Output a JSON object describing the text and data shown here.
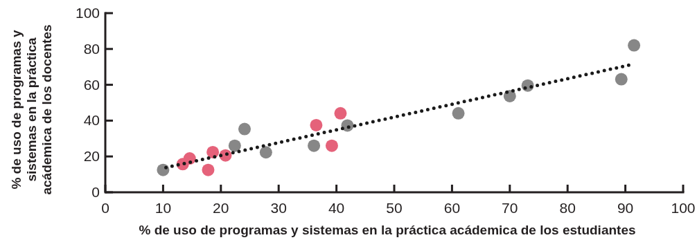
{
  "chart_data": {
    "type": "scatter",
    "xlabel": "% de uso de programas y sistemas en la práctica acádemica de los estudiantes",
    "ylabel": "% de uso de programas y\nsistemas en la práctica\nacádemica de los docentes",
    "xlim": [
      0,
      100
    ],
    "ylim": [
      0,
      100
    ],
    "xticks": [
      0,
      10,
      20,
      30,
      40,
      50,
      60,
      70,
      80,
      90,
      100
    ],
    "yticks": [
      0,
      20,
      40,
      60,
      80,
      100
    ],
    "grid": false,
    "marker": "circle",
    "series": [
      {
        "color": "#878787",
        "x": [
          10.0,
          22.4,
          24.1,
          27.8,
          36.1,
          41.9,
          61.1,
          70.0,
          73.1,
          89.3,
          91.5
        ],
        "values": [
          12.5,
          26.0,
          35.3,
          22.3,
          26.0,
          37.3,
          44.1,
          53.7,
          59.6,
          63.1,
          82.0
        ]
      },
      {
        "color": "#e5627a",
        "x": [
          13.4,
          14.6,
          17.8,
          18.6,
          20.8,
          36.5,
          39.2,
          40.7
        ],
        "values": [
          15.7,
          18.9,
          12.5,
          22.4,
          20.6,
          37.5,
          26.0,
          44.1
        ]
      },
      {
        "type": "line",
        "color": "#1a1a1a",
        "line_style": "dotted",
        "marker": "none",
        "x": [
          10.5,
          91.2
        ],
        "values": [
          13.8,
          71.4
        ]
      }
    ]
  }
}
